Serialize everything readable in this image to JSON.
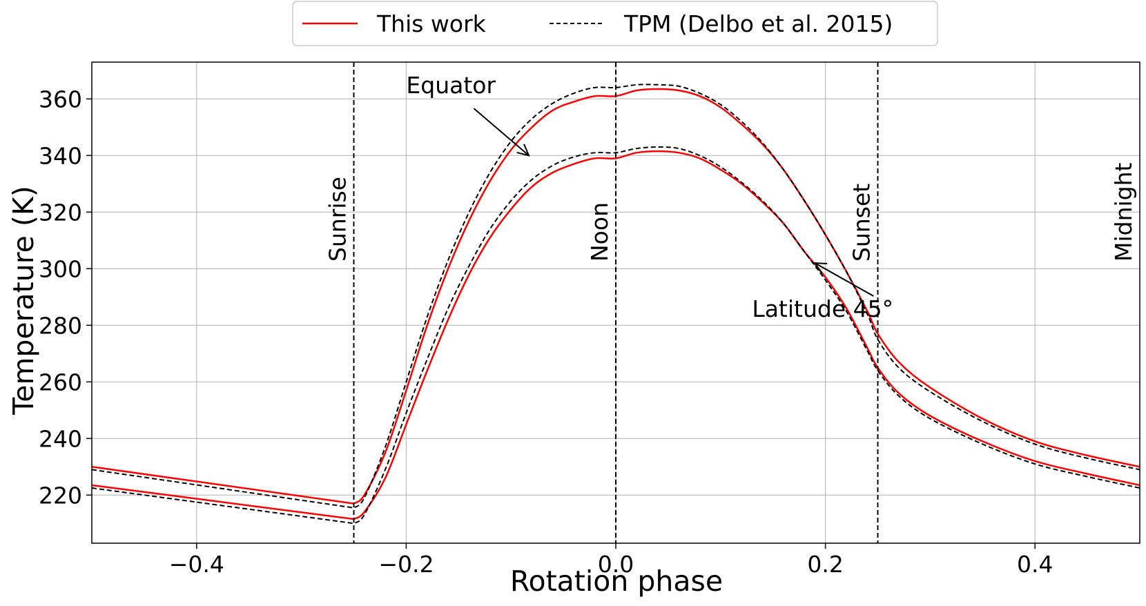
{
  "chart_data": {
    "type": "line",
    "xlabel": "Rotation phase",
    "ylabel": "Temperature (K)",
    "xlim": [
      -0.5,
      0.5
    ],
    "ylim": [
      203,
      373
    ],
    "xticks": [
      -0.4,
      -0.2,
      0.0,
      0.2,
      0.4
    ],
    "xtick_labels": [
      "−0.4",
      "−0.2",
      "0.0",
      "0.2",
      "0.4"
    ],
    "yticks": [
      220,
      240,
      260,
      280,
      300,
      320,
      340,
      360
    ],
    "ytick_labels": [
      "220",
      "240",
      "260",
      "280",
      "300",
      "320",
      "340",
      "360"
    ],
    "grid": true,
    "legend": {
      "position": "top-center-outside",
      "entries": [
        {
          "label": "This work",
          "color": "#ff0000",
          "style": "solid"
        },
        {
          "label": "TPM (Delbo et al. 2015)",
          "color": "#000000",
          "style": "dashed"
        }
      ]
    },
    "vertical_lines": [
      {
        "x": -0.25,
        "label": "Sunrise"
      },
      {
        "x": 0.0,
        "label": "Noon"
      },
      {
        "x": 0.25,
        "label": "Sunset"
      },
      {
        "x": 0.5,
        "label": "Midnight"
      }
    ],
    "annotations": [
      {
        "text": "Equator",
        "xy": [
          -0.083,
          340
        ],
        "xytext": [
          -0.2,
          362
        ]
      },
      {
        "text": "Latitude 45°",
        "xy": [
          0.19,
          302
        ],
        "xytext": [
          0.13,
          283
        ]
      }
    ],
    "series": [
      {
        "name": "This work — Equator",
        "color": "#ff0000",
        "style": "solid",
        "x": [
          -0.5,
          -0.25,
          -0.24,
          -0.22,
          -0.2,
          -0.18,
          -0.16,
          -0.14,
          -0.12,
          -0.1,
          -0.08,
          -0.06,
          -0.04,
          -0.02,
          0.0,
          0.02,
          0.04,
          0.06,
          0.08,
          0.1,
          0.12,
          0.14,
          0.16,
          0.18,
          0.2,
          0.22,
          0.24,
          0.25,
          0.27,
          0.3,
          0.35,
          0.4,
          0.45,
          0.5
        ],
        "y": [
          230,
          217,
          220,
          235,
          257,
          280,
          300,
          317,
          331,
          342,
          350,
          356,
          359,
          361,
          361,
          363,
          363.5,
          363,
          361,
          357,
          351,
          344,
          335,
          324,
          312,
          299,
          285,
          277,
          267,
          258,
          247,
          239,
          234,
          230
        ]
      },
      {
        "name": "TPM — Equator",
        "color": "#000000",
        "style": "dashed",
        "x": [
          -0.5,
          -0.25,
          -0.24,
          -0.22,
          -0.2,
          -0.18,
          -0.16,
          -0.14,
          -0.12,
          -0.1,
          -0.08,
          -0.06,
          -0.04,
          -0.02,
          0.0,
          0.02,
          0.04,
          0.06,
          0.08,
          0.1,
          0.12,
          0.14,
          0.16,
          0.18,
          0.2,
          0.22,
          0.24,
          0.25,
          0.27,
          0.3,
          0.35,
          0.4,
          0.45,
          0.5
        ],
        "y": [
          229,
          215.5,
          219,
          237,
          260,
          283,
          303,
          320,
          334,
          345,
          353,
          358.5,
          362,
          364,
          364,
          365,
          365,
          364.5,
          362,
          358,
          352,
          344.5,
          335,
          324,
          312,
          299,
          284,
          275,
          265,
          256.5,
          246,
          238,
          233,
          229
        ]
      },
      {
        "name": "This work — Latitude 45°",
        "color": "#ff0000",
        "style": "solid",
        "x": [
          -0.5,
          -0.25,
          -0.24,
          -0.22,
          -0.2,
          -0.18,
          -0.16,
          -0.14,
          -0.12,
          -0.1,
          -0.08,
          -0.06,
          -0.04,
          -0.02,
          0.0,
          0.02,
          0.04,
          0.06,
          0.08,
          0.1,
          0.12,
          0.14,
          0.16,
          0.18,
          0.2,
          0.22,
          0.24,
          0.25,
          0.27,
          0.3,
          0.35,
          0.4,
          0.45,
          0.5
        ],
        "y": [
          223.5,
          211.5,
          214,
          226,
          245,
          264,
          282,
          298,
          311,
          321,
          329,
          334,
          337,
          339,
          339,
          341,
          341.5,
          341,
          339,
          335,
          330,
          323.5,
          316,
          306,
          297,
          286,
          272,
          265,
          256,
          248,
          239,
          232,
          227.5,
          223.5
        ]
      },
      {
        "name": "TPM — Latitude 45°",
        "color": "#000000",
        "style": "dashed",
        "x": [
          -0.5,
          -0.25,
          -0.24,
          -0.22,
          -0.2,
          -0.18,
          -0.16,
          -0.14,
          -0.12,
          -0.1,
          -0.08,
          -0.06,
          -0.04,
          -0.02,
          0.0,
          0.02,
          0.04,
          0.06,
          0.08,
          0.1,
          0.12,
          0.14,
          0.16,
          0.18,
          0.2,
          0.22,
          0.24,
          0.25,
          0.27,
          0.3,
          0.35,
          0.4,
          0.45,
          0.5
        ],
        "y": [
          222.5,
          210,
          213,
          229,
          249,
          268,
          286,
          301,
          314,
          324,
          331.5,
          336.5,
          339.5,
          341,
          341,
          342.5,
          343,
          342.5,
          340,
          336,
          330.5,
          324,
          316,
          306,
          296,
          285,
          271,
          264,
          255,
          247,
          238,
          231,
          226.5,
          222.5
        ]
      }
    ]
  }
}
